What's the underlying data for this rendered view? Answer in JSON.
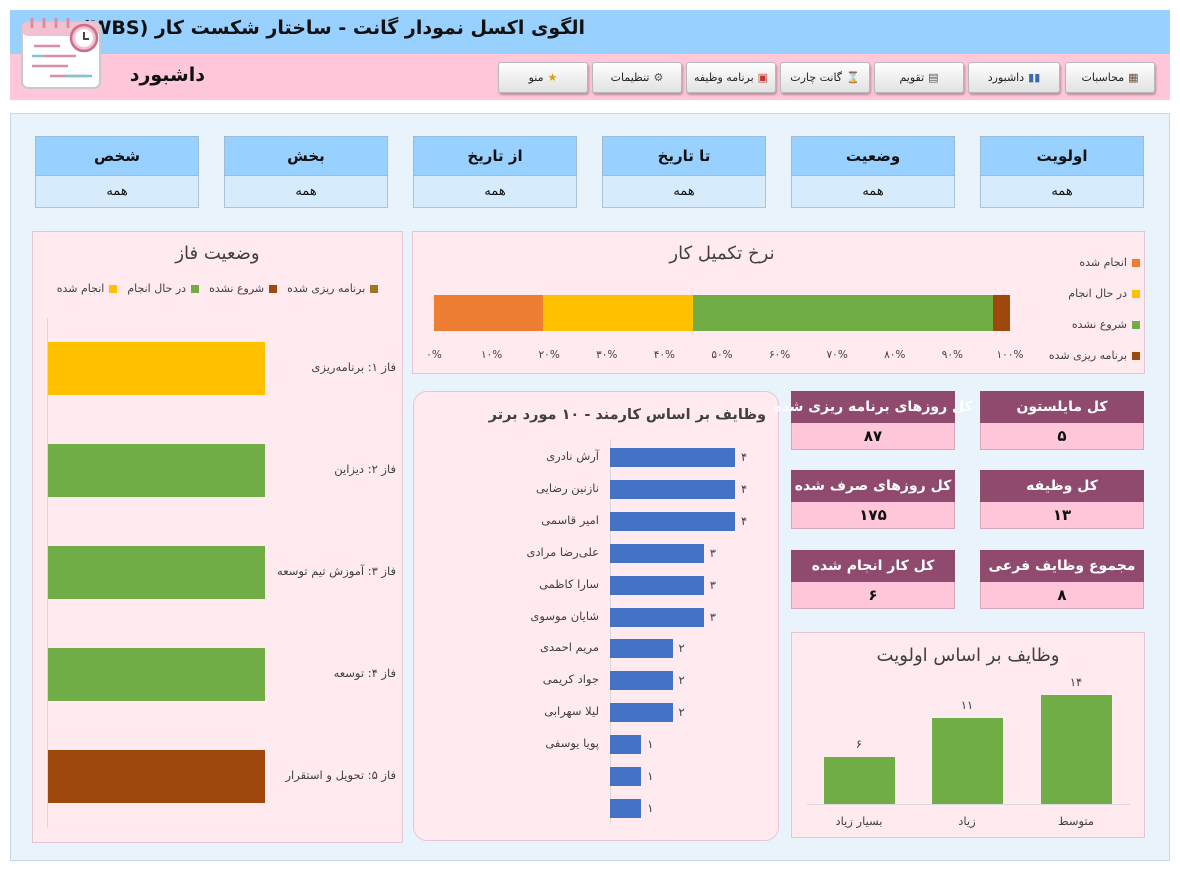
{
  "header": {
    "title": "الگوی اکسل نمودار گانت - ساختار شکست کار (WBS)",
    "subtitle": "داشبورد",
    "logo_icon": "gantt-calendar-icon"
  },
  "nav": [
    {
      "label": "محاسبات",
      "icon": "▦",
      "name": "calculations"
    },
    {
      "label": "داشبورد",
      "icon": "▮▮",
      "name": "dashboard"
    },
    {
      "label": "تقویم",
      "icon": "▤",
      "name": "calendar"
    },
    {
      "label": "گانت چارت",
      "icon": "⌛",
      "name": "gantt-chart"
    },
    {
      "label": "برنامه وظیفه",
      "icon": "▣",
      "name": "task-schedule"
    },
    {
      "label": "تنظیمات",
      "icon": "⚙",
      "name": "settings"
    },
    {
      "label": "منو",
      "icon": "★",
      "name": "menu"
    }
  ],
  "filters": [
    {
      "label": "اولویت",
      "value": "همه"
    },
    {
      "label": "وضعیت",
      "value": "همه"
    },
    {
      "label": "تا تاریخ",
      "value": "همه"
    },
    {
      "label": "از تاریخ",
      "value": "همه"
    },
    {
      "label": "بخش",
      "value": "همه"
    },
    {
      "label": "شخص",
      "value": "همه"
    }
  ],
  "colors": {
    "done": "#ed7d31",
    "in_progress": "#ffc000",
    "not_started": "#70ad47",
    "planned": "#9e480e",
    "bar_blue": "#4472c4",
    "kpi_header": "#8f4a6e"
  },
  "kpis": [
    {
      "label": "کل مایلستون",
      "value": "۵"
    },
    {
      "label": "کل روزهای برنامه ریزی شده",
      "value": "۸۷"
    },
    {
      "label": "کل وظیفه",
      "value": "۱۳"
    },
    {
      "label": "کل روزهای صرف شده",
      "value": "۱۷۵"
    },
    {
      "label": "مجموع وظایف فرعی",
      "value": "۸"
    },
    {
      "label": "کل کار انجام شده",
      "value": "۶"
    }
  ],
  "chart_data": [
    {
      "type": "bar",
      "orientation": "horizontal-stacked",
      "title": "نرخ تکمیل کار",
      "series": [
        {
          "name": "انجام شده",
          "value": 0.19
        },
        {
          "name": "در حال انجام",
          "value": 0.26
        },
        {
          "name": "شروع نشده",
          "value": 0.52
        },
        {
          "name": "برنامه ریزی شده",
          "value": 0.03
        }
      ],
      "xlim": [
        0,
        1
      ],
      "ticks": [
        "۰%",
        "۱۰%",
        "۲۰%",
        "۳۰%",
        "۴۰%",
        "۵۰%",
        "۶۰%",
        "۷۰%",
        "۸۰%",
        "۹۰%",
        "۱۰۰%"
      ],
      "legend": "right"
    },
    {
      "type": "bar",
      "orientation": "horizontal",
      "title": "وضعیت فاز",
      "legend_entries": [
        "برنامه ریزی شده",
        "شروع نشده",
        "در حال انجام",
        "انجام شده"
      ],
      "legend": "top",
      "categories": [
        "فاز ۱: برنامه‌ریزی",
        "فاز ۲: دیزاین",
        "فاز ۳: آموزش  تیم توسعه",
        "فاز ۴: توسعه",
        "فاز ۵: تحویل و استقرار"
      ],
      "values": [
        1,
        1,
        1,
        1,
        1
      ],
      "status": [
        "in_progress",
        "not_started",
        "not_started",
        "not_started",
        "planned"
      ]
    },
    {
      "type": "bar",
      "orientation": "horizontal",
      "title": "وظایف بر اساس کارمند - ۱۰ مورد برتر",
      "categories": [
        "آرش نادری",
        "نازنین رضایی",
        "امیر قاسمی",
        "علی‌رضا مرادی",
        "سارا کاظمی",
        "شایان موسوی",
        "مریم احمدی",
        "جواد کریمی",
        "لیلا سهرابی",
        "پویا یوسفی",
        "",
        ""
      ],
      "values": [
        4,
        4,
        4,
        3,
        3,
        3,
        2,
        2,
        2,
        1,
        1,
        1
      ],
      "value_labels": [
        "۴",
        "۴",
        "۴",
        "۳",
        "۳",
        "۳",
        "۲",
        "۲",
        "۲",
        "۱",
        "۱",
        "۱"
      ],
      "xlim": [
        0,
        4.5
      ]
    },
    {
      "type": "bar",
      "title": "وظایف بر اساس اولویت",
      "categories": [
        "متوسط",
        "زیاد",
        "بسیار زیاد"
      ],
      "values": [
        14,
        11,
        6
      ],
      "value_labels": [
        "۱۴",
        "۱۱",
        "۶"
      ],
      "ylim": [
        0,
        15
      ]
    }
  ]
}
